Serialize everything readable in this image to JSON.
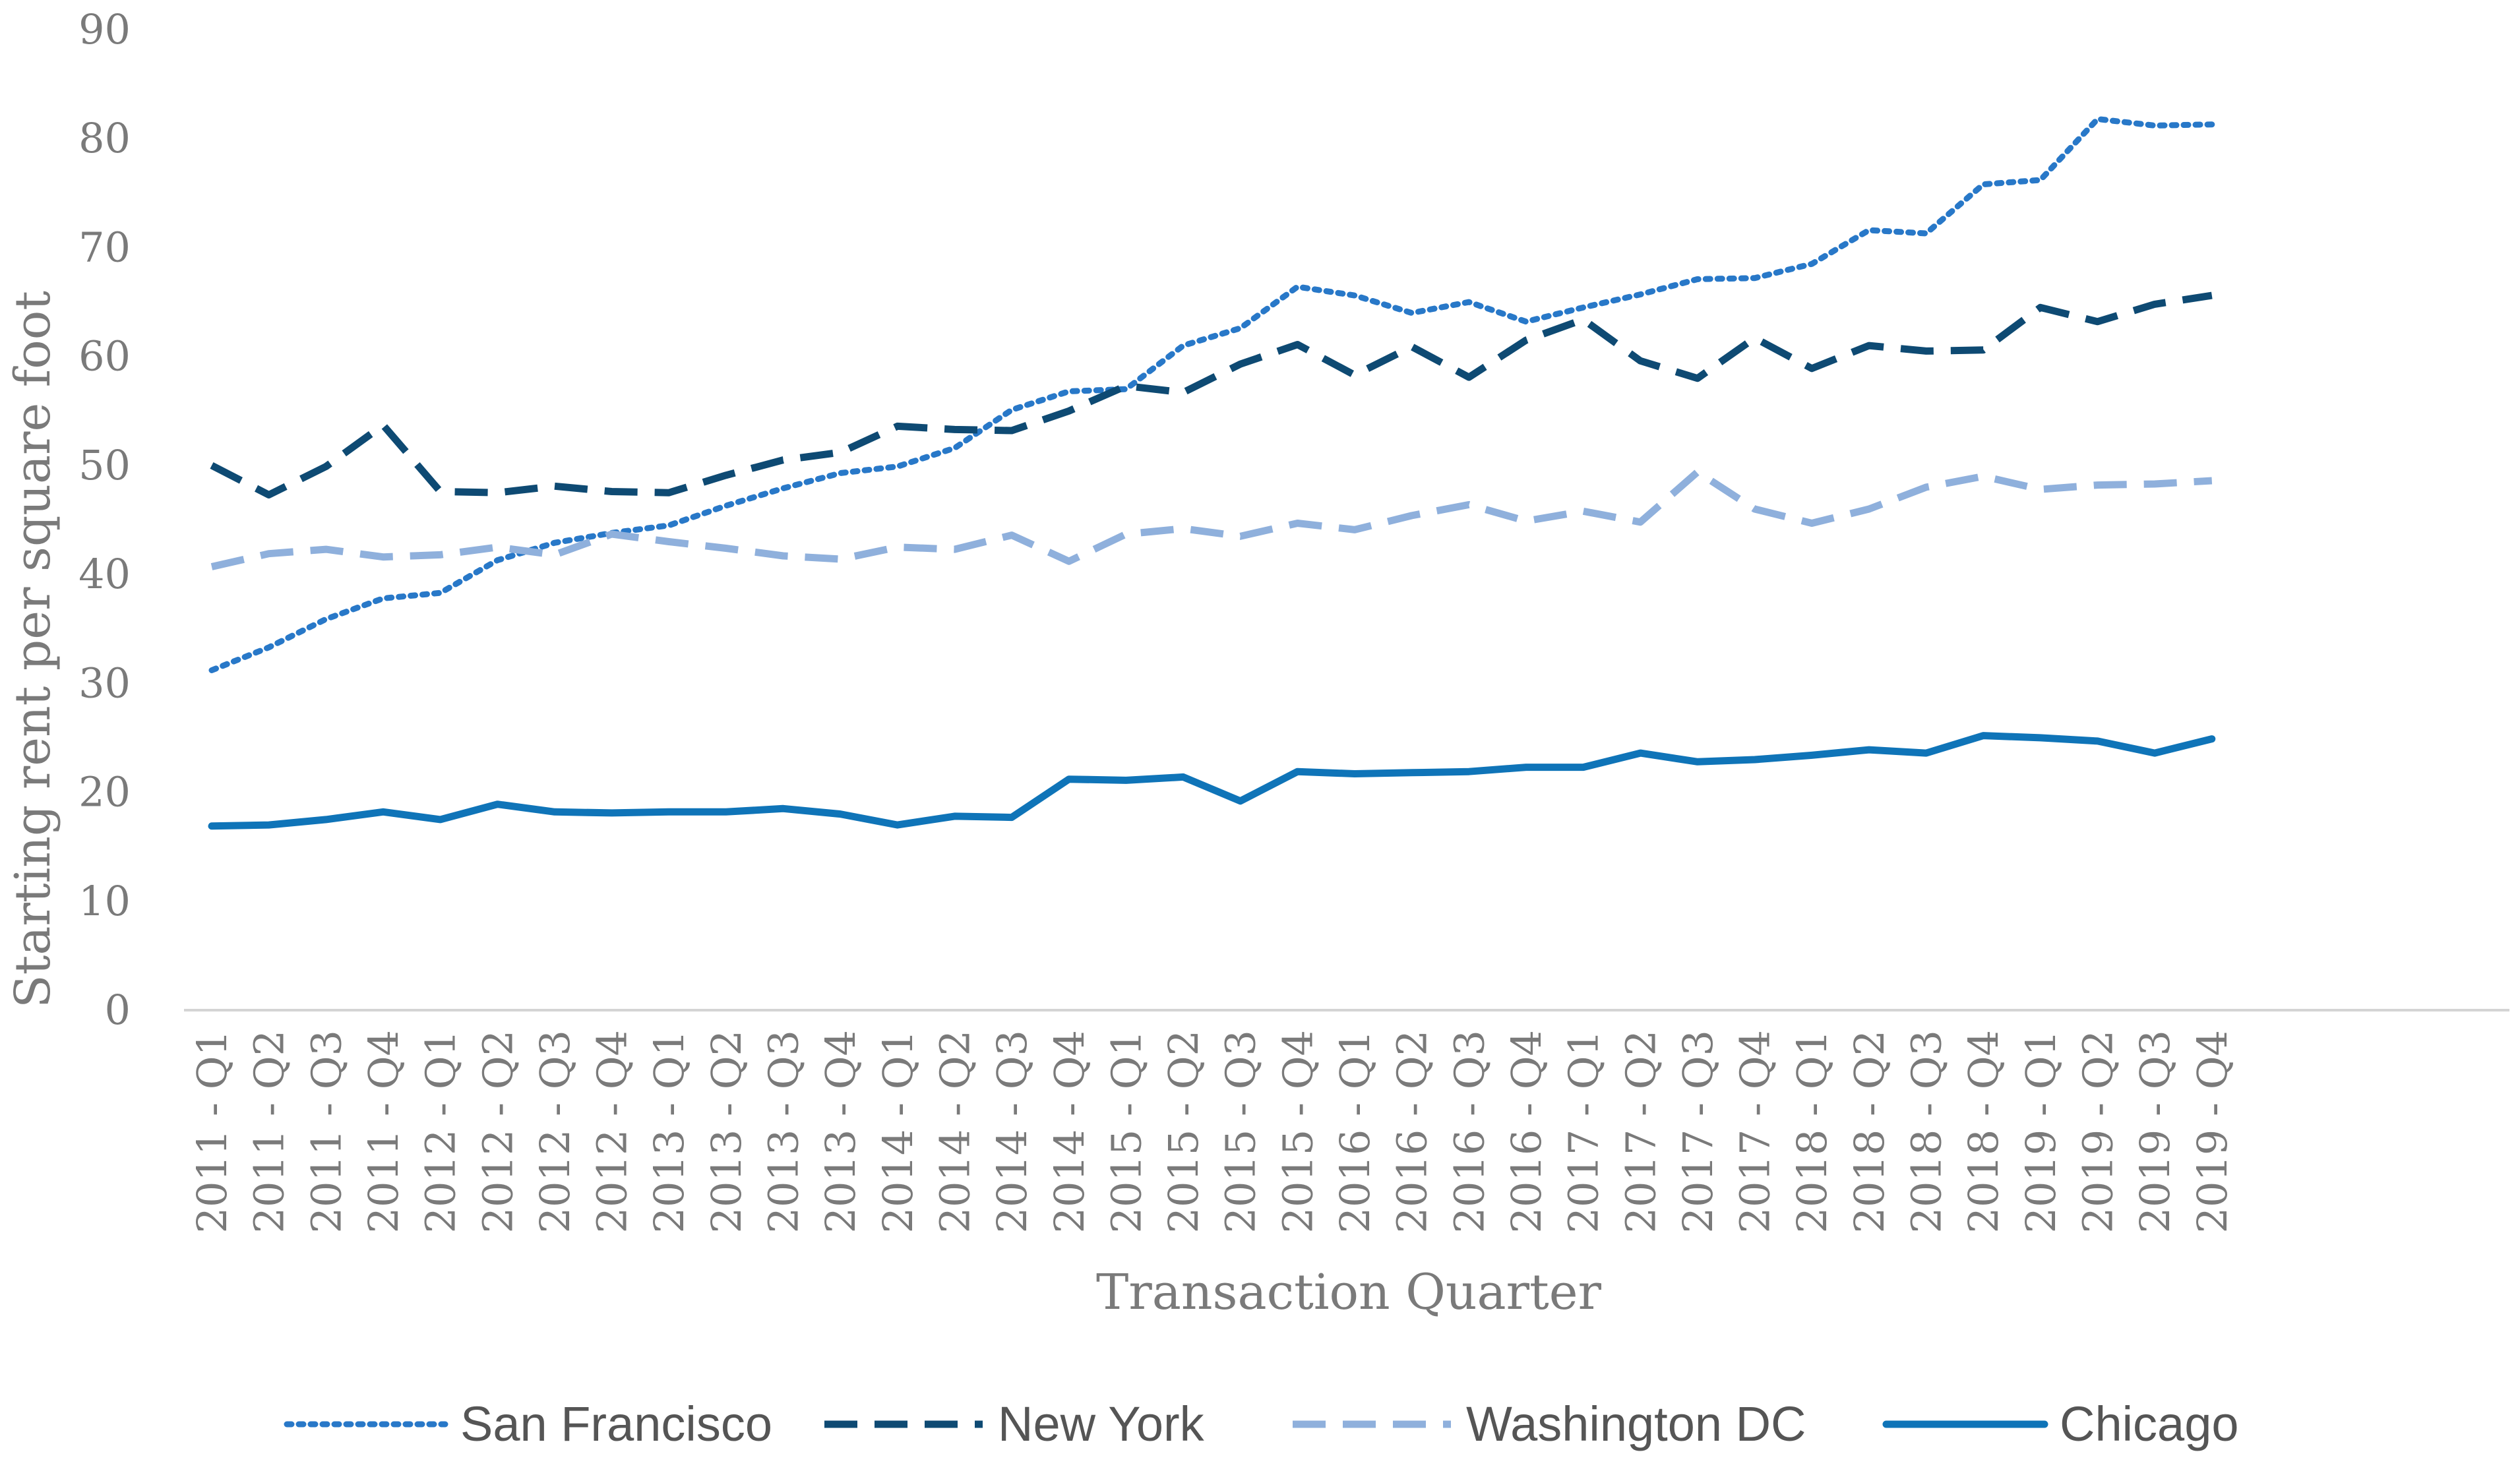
{
  "chart_data": {
    "type": "line",
    "title": "",
    "xlabel": "Transaction Quarter",
    "ylabel": "Starting rent per square foot",
    "ylim": [
      0,
      90
    ],
    "yticks": [
      0,
      10,
      20,
      30,
      40,
      50,
      60,
      70,
      80,
      90
    ],
    "grid": false,
    "legend_position": "bottom",
    "categories": [
      "2011 - Q1",
      "2011 - Q2",
      "2011 - Q3",
      "2011 - Q4",
      "2012 - Q1",
      "2012 - Q2",
      "2012 - Q3",
      "2012 - Q4",
      "2013 - Q1",
      "2013 - Q2",
      "2013 - Q3",
      "2013 - Q4",
      "2014 - Q1",
      "2014 - Q2",
      "2014 - Q3",
      "2014 - Q4",
      "2015 - Q1",
      "2015 - Q2",
      "2015 - Q3",
      "2015 - Q4",
      "2016 - Q1",
      "2016 - Q2",
      "2016 - Q3",
      "2016 - Q4",
      "2017 - Q1",
      "2017 - Q2",
      "2017 - Q3",
      "2017 - Q4",
      "2018 - Q1",
      "2018 - Q2",
      "2018 - Q3",
      "2018 - Q4",
      "2019 - Q1",
      "2019 - Q2",
      "2019 - Q3",
      "2019 - Q4"
    ],
    "series": [
      {
        "name": "San Francisco",
        "color": "#2878c8",
        "style": "dotted",
        "values": [
          31.2,
          33.3,
          35.9,
          37.8,
          38.3,
          41.3,
          42.9,
          43.8,
          44.5,
          46.3,
          47.9,
          49.3,
          49.9,
          51.6,
          55.1,
          56.8,
          57.0,
          61.0,
          62.6,
          66.4,
          65.6,
          64.0,
          65.0,
          63.2,
          64.5,
          65.7,
          67.1,
          67.2,
          68.5,
          71.6,
          71.3,
          75.8,
          76.2,
          81.8,
          81.2,
          81.3
        ]
      },
      {
        "name": "New York",
        "color": "#0e4a73",
        "style": "dashed",
        "values": [
          50.0,
          47.3,
          49.9,
          53.7,
          47.6,
          47.5,
          48.1,
          47.6,
          47.5,
          49.1,
          50.5,
          51.2,
          53.6,
          53.3,
          53.2,
          55.0,
          57.3,
          56.7,
          59.3,
          61.1,
          58.3,
          60.9,
          58.1,
          61.5,
          63.4,
          59.6,
          58.0,
          61.7,
          58.9,
          61.0,
          60.5,
          60.6,
          64.5,
          63.2,
          64.8,
          65.6
        ]
      },
      {
        "name": "Washington DC",
        "color": "#8fb0dc",
        "style": "dashed",
        "values": [
          40.7,
          41.9,
          42.3,
          41.6,
          41.8,
          42.5,
          41.8,
          43.7,
          43.0,
          42.4,
          41.7,
          41.4,
          42.5,
          42.3,
          43.6,
          41.2,
          43.7,
          44.2,
          43.5,
          44.7,
          44.1,
          45.4,
          46.4,
          44.9,
          45.8,
          44.8,
          49.4,
          46.0,
          44.7,
          46.0,
          48.0,
          49.0,
          47.8,
          48.2,
          48.3,
          48.6
        ]
      },
      {
        "name": "Chicago",
        "color": "#0f74b8",
        "style": "solid",
        "values": [
          16.9,
          17.0,
          17.5,
          18.2,
          17.5,
          18.9,
          18.2,
          18.1,
          18.2,
          18.2,
          18.5,
          18.0,
          17.0,
          17.8,
          17.7,
          21.2,
          21.1,
          21.4,
          19.2,
          21.9,
          21.7,
          21.8,
          21.9,
          22.3,
          22.3,
          23.6,
          22.8,
          23.0,
          23.4,
          23.9,
          23.6,
          25.2,
          25.0,
          24.7,
          23.6,
          24.9
        ]
      }
    ]
  }
}
